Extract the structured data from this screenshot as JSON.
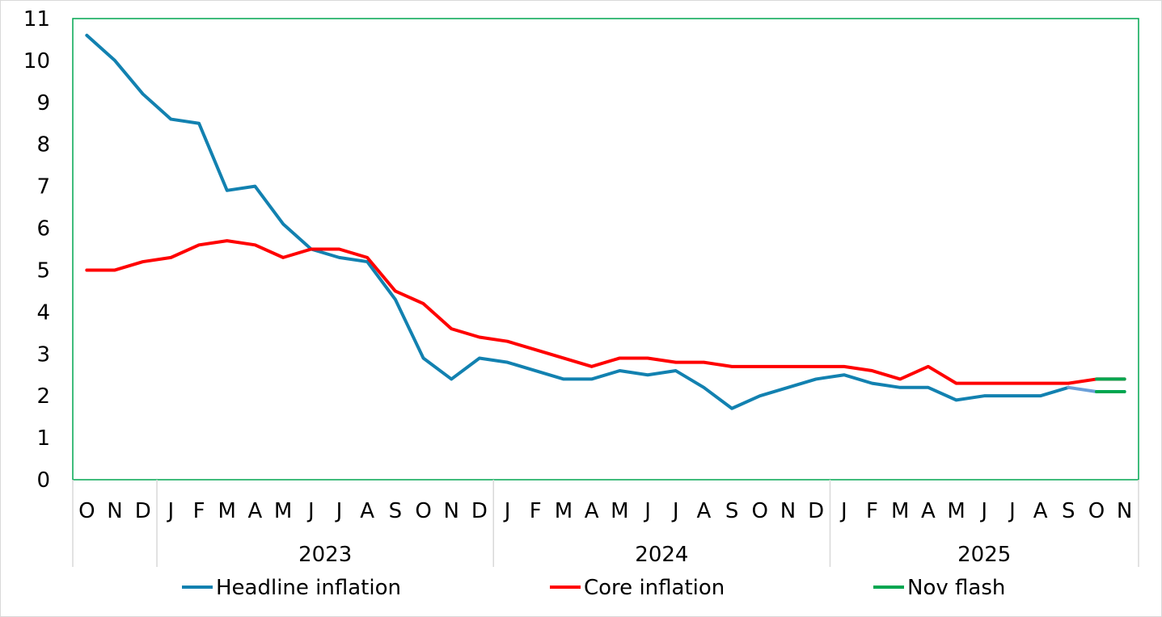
{
  "chart_data": {
    "type": "line",
    "title": "",
    "xlabel": "",
    "ylabel": "",
    "ylim": [
      0,
      11
    ],
    "yticks": [
      0,
      1,
      2,
      3,
      4,
      5,
      6,
      7,
      8,
      9,
      10,
      11
    ],
    "grid": false,
    "legend_position": "bottom",
    "x": [
      "2022-10",
      "2022-11",
      "2022-12",
      "2023-01",
      "2023-02",
      "2023-03",
      "2023-04",
      "2023-05",
      "2023-06",
      "2023-07",
      "2023-08",
      "2023-09",
      "2023-10",
      "2023-11",
      "2023-12",
      "2024-01",
      "2024-02",
      "2024-03",
      "2024-04",
      "2024-05",
      "2024-06",
      "2024-07",
      "2024-08",
      "2024-09",
      "2024-10",
      "2024-11",
      "2024-12",
      "2025-01",
      "2025-02",
      "2025-03",
      "2025-04",
      "2025-05",
      "2025-06",
      "2025-07",
      "2025-08",
      "2025-09",
      "2025-10",
      "2025-11"
    ],
    "month_labels": [
      "O",
      "N",
      "D",
      "J",
      "F",
      "M",
      "A",
      "M",
      "J",
      "J",
      "A",
      "S",
      "O",
      "N",
      "D",
      "J",
      "F",
      "M",
      "A",
      "M",
      "J",
      "J",
      "A",
      "S",
      "O",
      "N",
      "D",
      "J",
      "F",
      "M",
      "A",
      "M",
      "J",
      "J",
      "A",
      "S",
      "O",
      "N"
    ],
    "year_groups": [
      {
        "label": "",
        "start": 0,
        "end": 2
      },
      {
        "label": "2023",
        "start": 3,
        "end": 14
      },
      {
        "label": "2024",
        "start": 15,
        "end": 26
      },
      {
        "label": "2025",
        "start": 27,
        "end": 37
      }
    ],
    "series": [
      {
        "name": "Headline inflation",
        "color": "#1281b0",
        "values": [
          10.6,
          10.0,
          9.2,
          8.6,
          8.5,
          6.9,
          7.0,
          6.1,
          5.5,
          5.3,
          5.2,
          4.3,
          2.9,
          2.4,
          2.9,
          2.8,
          2.6,
          2.4,
          2.4,
          2.6,
          2.5,
          2.6,
          2.2,
          1.7,
          2.0,
          2.2,
          2.4,
          2.5,
          2.3,
          2.2,
          2.2,
          1.9,
          2.0,
          2.0,
          2.0,
          2.2,
          2.1,
          2.1
        ],
        "estimate_color": "#6a9fd8",
        "estimate_from_index": 35
      },
      {
        "name": "Core inflation",
        "color": "#ff0000",
        "values": [
          5.0,
          5.0,
          5.2,
          5.3,
          5.6,
          5.7,
          5.6,
          5.3,
          5.5,
          5.5,
          5.3,
          4.5,
          4.2,
          3.6,
          3.4,
          3.3,
          3.1,
          2.9,
          2.7,
          2.9,
          2.9,
          2.8,
          2.8,
          2.7,
          2.7,
          2.7,
          2.7,
          2.7,
          2.6,
          2.4,
          2.7,
          2.3,
          2.3,
          2.3,
          2.3,
          2.3,
          2.4,
          2.4
        ]
      },
      {
        "name": "Nov flash",
        "color": "#00a650",
        "segments": [
          {
            "x": [
              "2025-10",
              "2025-11"
            ],
            "values": [
              2.1,
              2.1
            ]
          },
          {
            "x": [
              "2025-10",
              "2025-11"
            ],
            "values": [
              2.4,
              2.4
            ]
          }
        ]
      }
    ]
  }
}
